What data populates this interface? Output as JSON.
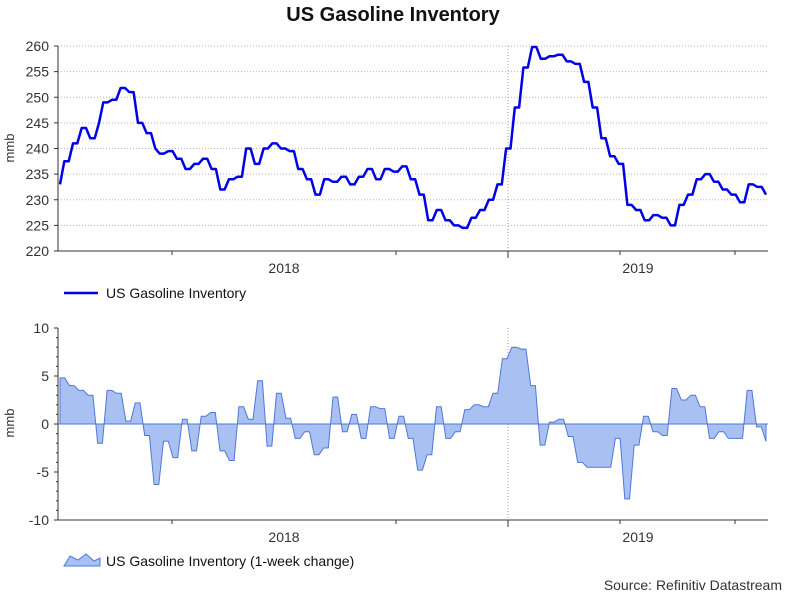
{
  "title": "US Gasoline Inventory",
  "source": "Source: Refinitiv Datastream",
  "colors": {
    "line": "#0000e6",
    "area_fill": "#a9c0f2",
    "area_stroke": "#4f78d6",
    "grid": "#b5b5b5",
    "divider": "#999999"
  },
  "chart_data": [
    {
      "type": "line",
      "ylabel": "mmb",
      "ylim": [
        220,
        260
      ],
      "yticks": [
        220,
        225,
        230,
        235,
        240,
        245,
        250,
        255,
        260
      ],
      "xticks": [
        "2018",
        "2019"
      ],
      "grid": true,
      "legend": {
        "position": "bottom-left"
      },
      "series": [
        {
          "name": "US Gasoline Inventory",
          "x_start": "2017-03-03",
          "interval": "weekly",
          "values": [
            233,
            237.5,
            237.5,
            241,
            241,
            244,
            244,
            242,
            242,
            245,
            249,
            249,
            249.5,
            249.5,
            251.8,
            251.8,
            251,
            251,
            245,
            245,
            243,
            243,
            240,
            239,
            239,
            239.5,
            239.5,
            238,
            238,
            236,
            236,
            237,
            237,
            238,
            238,
            236,
            236,
            232,
            232,
            234,
            234,
            234.5,
            234.5,
            240,
            240,
            237,
            237,
            240,
            240,
            241,
            241,
            240,
            240,
            239.5,
            239.5,
            236,
            236,
            234,
            234,
            231,
            231,
            234,
            234,
            233.5,
            233.5,
            234.5,
            234.5,
            233,
            233,
            234.5,
            234.5,
            236,
            236,
            234,
            234,
            236,
            236,
            235.5,
            235.5,
            236.5,
            236.5,
            234,
            234,
            231,
            231,
            226,
            226,
            228,
            228,
            226,
            226,
            225,
            225,
            224.5,
            224.5,
            226.5,
            226.5,
            228,
            228,
            230,
            230,
            233,
            233,
            240,
            240,
            248,
            248,
            255.8,
            255.8,
            259.8,
            259.8,
            257.5,
            257.5,
            258,
            258,
            258.3,
            258.3,
            257,
            257,
            256.5,
            256.5,
            253,
            253,
            248,
            248,
            242,
            242,
            238.5,
            238.5,
            237,
            237,
            229,
            229,
            228,
            228,
            226,
            226,
            227,
            227,
            226.5,
            226.5,
            225,
            225,
            229,
            229,
            231,
            231,
            234,
            234,
            235,
            235,
            233.5,
            233.5,
            232,
            232,
            231,
            231,
            229.5,
            229.5,
            233,
            233,
            232.5,
            232.5,
            231
          ]
        }
      ]
    },
    {
      "type": "area",
      "ylabel": "mmb",
      "ylim": [
        -10,
        10
      ],
      "yticks": [
        -10,
        -5,
        0,
        5,
        10
      ],
      "xticks": [
        "2018",
        "2019"
      ],
      "grid": false,
      "legend": {
        "position": "bottom-left"
      },
      "series": [
        {
          "name": "US Gasoline Inventory (1-week change)",
          "x_start": "2017-03-03",
          "interval": "weekly",
          "values": [
            4.8,
            4.8,
            4,
            4,
            3.5,
            3.5,
            3,
            3,
            -2,
            -2,
            3.5,
            3.5,
            3.2,
            3.2,
            0.3,
            0.3,
            2.2,
            2.2,
            -1.2,
            -1.2,
            -6.3,
            -6.3,
            -1.8,
            -1.8,
            -3.5,
            -3.5,
            0.5,
            0.5,
            -2.8,
            -2.8,
            0.8,
            0.8,
            1.2,
            1.2,
            -2.8,
            -2.8,
            -3.8,
            -3.8,
            1.8,
            1.8,
            0.5,
            0.5,
            4.5,
            4.5,
            -2.3,
            -2.3,
            3.2,
            3.2,
            0.6,
            0.6,
            -1.5,
            -1.5,
            -0.8,
            -0.8,
            -3.2,
            -3.2,
            -2.5,
            -2.5,
            2.8,
            2.8,
            -0.8,
            -0.8,
            1,
            1,
            -1.5,
            -1.5,
            1.8,
            1.8,
            1.6,
            1.6,
            -1.5,
            -1.5,
            0.8,
            0.8,
            -1.5,
            -1.5,
            -4.8,
            -4.8,
            -3.2,
            -3.2,
            1.8,
            1.8,
            -1.5,
            -1.5,
            -0.8,
            -0.8,
            1.5,
            1.5,
            2,
            2,
            1.8,
            1.8,
            3.2,
            3.2,
            6.8,
            6.8,
            8,
            8,
            7.8,
            7.8,
            4,
            4,
            -2.2,
            -2.2,
            0.2,
            0.2,
            0.5,
            0.5,
            -1.3,
            -1.3,
            -4,
            -4,
            -4.5,
            -4.5,
            -4.5,
            -4.5,
            -4.5,
            -4.5,
            -1.5,
            -1.5,
            -7.8,
            -7.8,
            -2.2,
            -2.2,
            0.8,
            0.8,
            -0.8,
            -0.8,
            -1.2,
            -1.2,
            3.7,
            3.7,
            2.5,
            2.5,
            3,
            3,
            1.8,
            1.8,
            -1.5,
            -1.5,
            -0.8,
            -0.8,
            -1.5,
            -1.5,
            -1.5,
            -1.5,
            3.5,
            3.5,
            -0.3,
            -0.3,
            -1.8
          ]
        }
      ]
    }
  ]
}
